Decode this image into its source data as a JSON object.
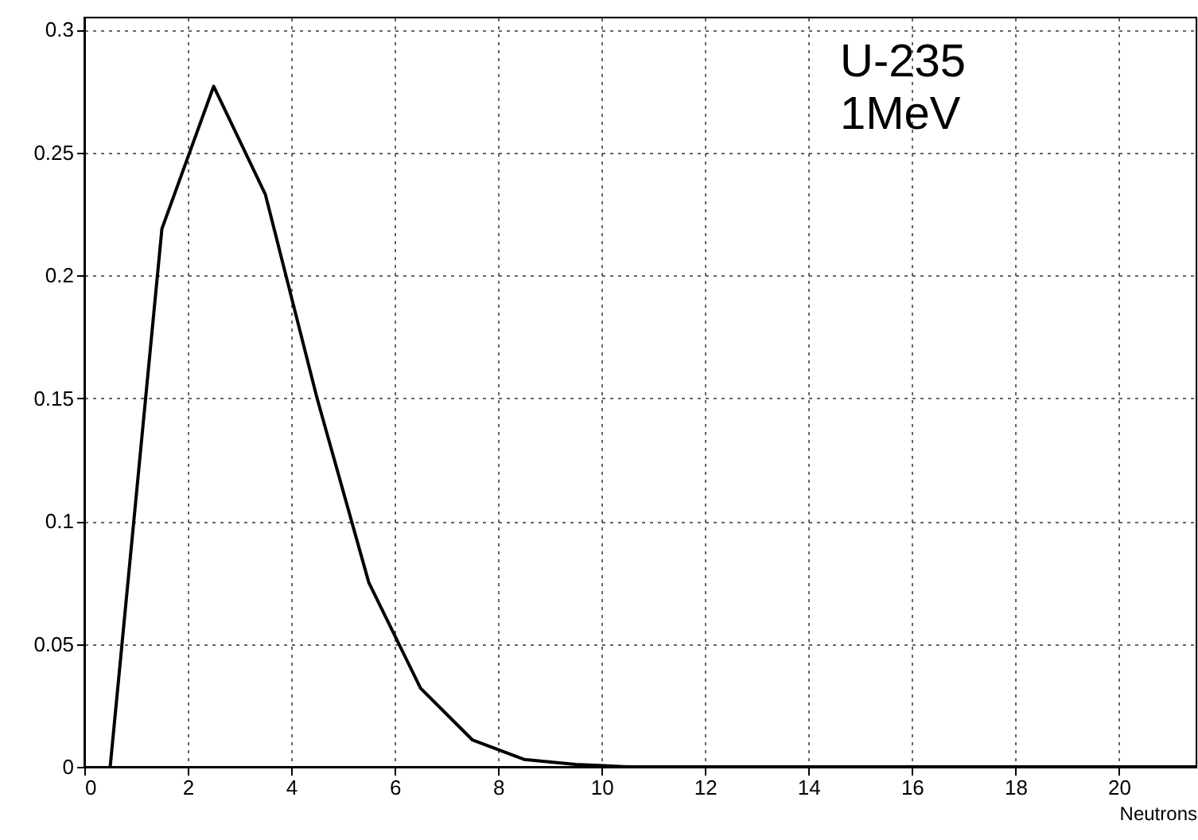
{
  "chart_data": {
    "type": "line",
    "xlabel": "Neutrons",
    "annotations": [
      "U-235\n1MeV"
    ],
    "x": [
      0.5,
      1.5,
      2.5,
      3.5,
      4.5,
      5.5,
      6.5,
      7.5,
      8.5,
      9.5,
      10.5,
      11.5,
      12.5,
      13.5,
      14.5,
      15.5,
      16.5,
      17.5,
      18.5,
      19.5,
      20.5,
      21.5
    ],
    "series": [
      {
        "color": "#000000",
        "values": [
          0,
          0.219,
          0.277,
          0.233,
          0.15,
          0.075,
          0.032,
          0.011,
          0.003,
          0.001,
          0,
          0,
          0,
          0,
          0,
          0,
          0,
          0,
          0,
          0,
          0,
          0
        ]
      }
    ],
    "xlim": [
      0,
      21.5
    ],
    "ylim": [
      0,
      0.305
    ],
    "xticks": [
      0,
      2,
      4,
      6,
      8,
      10,
      12,
      14,
      16,
      18,
      20
    ],
    "yticks": [
      0,
      0.05,
      0.1,
      0.15,
      0.2,
      0.25,
      0.3
    ],
    "grid": true,
    "marker": "none",
    "line_style": "solid"
  }
}
